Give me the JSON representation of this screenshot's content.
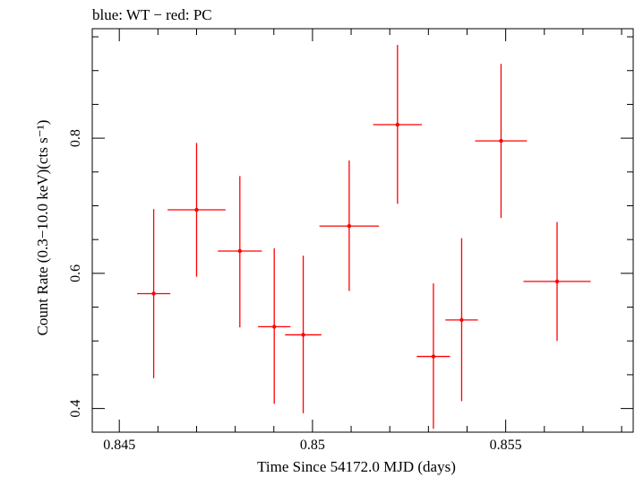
{
  "chart_data": {
    "type": "scatter",
    "title": "blue: WT − red: PC",
    "xlabel": "Time Since 54172.0 MJD (days)",
    "ylabel": "Count Rate (0.3−10.0 keV)(cts s⁻¹)",
    "xlim": [
      0.8443,
      0.8583
    ],
    "ylim": [
      0.365,
      0.962
    ],
    "xticks": [
      0.845,
      0.85,
      0.855
    ],
    "xtick_labels": [
      "0.845",
      "0.85",
      "0.855"
    ],
    "yticks": [
      0.4,
      0.6,
      0.8
    ],
    "ytick_labels": [
      "0.4",
      "0.6",
      "0.8"
    ],
    "grid": false,
    "series": [
      {
        "name": "PC",
        "color": "#ff0000",
        "points": [
          {
            "x": 0.84589,
            "y": 0.57,
            "xerr": 0.00043,
            "yerr_lo": 0.125,
            "yerr_hi": 0.125
          },
          {
            "x": 0.847,
            "y": 0.694,
            "xerr": 0.00075,
            "yerr_lo": 0.099,
            "yerr_hi": 0.099
          },
          {
            "x": 0.84812,
            "y": 0.633,
            "xerr": 0.00057,
            "yerr_lo": 0.113,
            "yerr_hi": 0.111
          },
          {
            "x": 0.84901,
            "y": 0.521,
            "xerr": 0.00042,
            "yerr_lo": 0.114,
            "yerr_hi": 0.116
          },
          {
            "x": 0.84976,
            "y": 0.509,
            "xerr": 0.00047,
            "yerr_lo": 0.116,
            "yerr_hi": 0.117
          },
          {
            "x": 0.85095,
            "y": 0.67,
            "xerr": 0.00077,
            "yerr_lo": 0.096,
            "yerr_hi": 0.097
          },
          {
            "x": 0.8522,
            "y": 0.82,
            "xerr": 0.00063,
            "yerr_lo": 0.117,
            "yerr_hi": 0.118
          },
          {
            "x": 0.85313,
            "y": 0.477,
            "xerr": 0.00043,
            "yerr_lo": 0.107,
            "yerr_hi": 0.108
          },
          {
            "x": 0.85386,
            "y": 0.531,
            "xerr": 0.00042,
            "yerr_lo": 0.12,
            "yerr_hi": 0.121
          },
          {
            "x": 0.85488,
            "y": 0.796,
            "xerr": 0.00067,
            "yerr_lo": 0.114,
            "yerr_hi": 0.114
          },
          {
            "x": 0.85633,
            "y": 0.588,
            "xerr": 0.00087,
            "yerr_lo": 0.088,
            "yerr_hi": 0.088
          }
        ]
      }
    ]
  }
}
